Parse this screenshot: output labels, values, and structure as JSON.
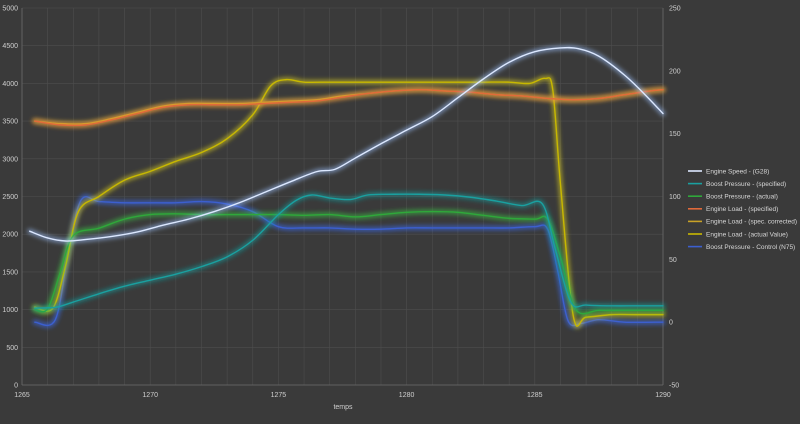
{
  "chart_data": {
    "type": "line",
    "title": "",
    "xlabel": "temps",
    "ylabel": "",
    "xlim": [
      1265,
      1290
    ],
    "ylim_left": [
      0,
      5000
    ],
    "ylim_right": [
      -50,
      250
    ],
    "grid": true,
    "legend_position": "right",
    "x_ticks": [
      1265,
      1270,
      1275,
      1280,
      1285,
      1290
    ],
    "y_left_ticks": [
      0,
      500,
      1000,
      1500,
      2000,
      2500,
      3000,
      3500,
      4000,
      4500,
      5000
    ],
    "y_right_ticks": [
      -50,
      0,
      50,
      100,
      150,
      200,
      250
    ],
    "colors": {
      "background": "#3a3a3a",
      "grid": "#4e4e4e",
      "axis_text": "#cfcfcf"
    },
    "series": [
      {
        "name": "Engine Speed - (G28)",
        "axis": "left",
        "color": "#dce8ff",
        "glow": "#9fc3ff",
        "points": [
          [
            1265.3,
            2040
          ],
          [
            1266,
            1950
          ],
          [
            1266.7,
            1910
          ],
          [
            1267.5,
            1930
          ],
          [
            1268.5,
            1970
          ],
          [
            1269.5,
            2030
          ],
          [
            1270.5,
            2120
          ],
          [
            1271.5,
            2200
          ],
          [
            1272.5,
            2300
          ],
          [
            1273.5,
            2420
          ],
          [
            1274.5,
            2560
          ],
          [
            1275.5,
            2700
          ],
          [
            1276.5,
            2830
          ],
          [
            1277.2,
            2860
          ],
          [
            1278,
            3010
          ],
          [
            1279,
            3200
          ],
          [
            1280,
            3380
          ],
          [
            1281,
            3560
          ],
          [
            1282,
            3810
          ],
          [
            1283,
            4060
          ],
          [
            1284,
            4280
          ],
          [
            1285,
            4420
          ],
          [
            1286,
            4470
          ],
          [
            1286.7,
            4460
          ],
          [
            1287.5,
            4360
          ],
          [
            1288.5,
            4110
          ],
          [
            1289.3,
            3850
          ],
          [
            1290,
            3600
          ]
        ]
      },
      {
        "name": "Boost Pressure - (specified)",
        "axis": "left",
        "color": "#1aa0a0",
        "glow": "#1aa0a0",
        "points": [
          [
            1265.5,
            1020
          ],
          [
            1266.3,
            1030
          ],
          [
            1267,
            1100
          ],
          [
            1268,
            1210
          ],
          [
            1269,
            1310
          ],
          [
            1270,
            1390
          ],
          [
            1271,
            1470
          ],
          [
            1272,
            1570
          ],
          [
            1273,
            1700
          ],
          [
            1274,
            1920
          ],
          [
            1275,
            2260
          ],
          [
            1275.7,
            2450
          ],
          [
            1276.3,
            2520
          ],
          [
            1277,
            2480
          ],
          [
            1277.8,
            2460
          ],
          [
            1278.5,
            2520
          ],
          [
            1279.5,
            2530
          ],
          [
            1280.5,
            2530
          ],
          [
            1281.5,
            2520
          ],
          [
            1282.5,
            2490
          ],
          [
            1283.5,
            2440
          ],
          [
            1284.5,
            2380
          ],
          [
            1285.3,
            2400
          ],
          [
            1285.8,
            1800
          ],
          [
            1286.4,
            1100
          ],
          [
            1287,
            1060
          ],
          [
            1288,
            1050
          ],
          [
            1289,
            1050
          ],
          [
            1290,
            1050
          ]
        ]
      },
      {
        "name": "Boost Pressure - (actual)",
        "axis": "left",
        "color": "#2fa83a",
        "glow": "#3ccf45",
        "points": [
          [
            1265.5,
            1000
          ],
          [
            1266,
            1010
          ],
          [
            1266.5,
            1500
          ],
          [
            1267,
            1980
          ],
          [
            1268,
            2080
          ],
          [
            1269,
            2200
          ],
          [
            1270,
            2260
          ],
          [
            1271,
            2270
          ],
          [
            1272,
            2260
          ],
          [
            1273,
            2260
          ],
          [
            1274,
            2260
          ],
          [
            1275,
            2260
          ],
          [
            1276,
            2250
          ],
          [
            1277,
            2260
          ],
          [
            1278,
            2230
          ],
          [
            1279,
            2260
          ],
          [
            1280,
            2290
          ],
          [
            1281,
            2300
          ],
          [
            1282,
            2290
          ],
          [
            1283,
            2250
          ],
          [
            1284,
            2210
          ],
          [
            1285,
            2200
          ],
          [
            1285.5,
            2200
          ],
          [
            1286,
            1700
          ],
          [
            1286.6,
            1000
          ],
          [
            1287.5,
            990
          ],
          [
            1288.5,
            990
          ],
          [
            1290,
            990
          ]
        ]
      },
      {
        "name": "Engine Load - (specified)",
        "axis": "right",
        "color": "#e06a3a",
        "glow": "#f08a3a",
        "points": [
          [
            1265.5,
            160
          ],
          [
            1266.5,
            157
          ],
          [
            1267.5,
            157
          ],
          [
            1268.5,
            161
          ],
          [
            1269.5,
            166
          ],
          [
            1270.5,
            171
          ],
          [
            1271.5,
            173
          ],
          [
            1272.5,
            173
          ],
          [
            1273.5,
            173
          ],
          [
            1274.5,
            174
          ],
          [
            1275.5,
            175
          ],
          [
            1276.5,
            176
          ],
          [
            1277.5,
            179
          ],
          [
            1278.5,
            182
          ],
          [
            1279.5,
            184
          ],
          [
            1280.5,
            185
          ],
          [
            1281.5,
            184
          ],
          [
            1282.5,
            183
          ],
          [
            1283.5,
            181
          ],
          [
            1284.5,
            180
          ],
          [
            1285.5,
            178
          ],
          [
            1286.5,
            177
          ],
          [
            1287.5,
            178
          ],
          [
            1288.5,
            181
          ],
          [
            1289.5,
            184
          ],
          [
            1290,
            185
          ]
        ]
      },
      {
        "name": "Engine Load - (spec. corrected)",
        "axis": "right",
        "color": "#c9a227",
        "glow": "#e0c040",
        "points": [
          [
            1265.5,
            160
          ],
          [
            1266.5,
            158
          ],
          [
            1267.5,
            158
          ],
          [
            1268.5,
            162
          ],
          [
            1269.5,
            167
          ],
          [
            1270.5,
            172
          ],
          [
            1271.5,
            174
          ],
          [
            1272.5,
            174
          ],
          [
            1273.5,
            174
          ],
          [
            1274.5,
            175
          ],
          [
            1275.5,
            176
          ],
          [
            1276.5,
            177
          ],
          [
            1277.5,
            180
          ],
          [
            1278.5,
            182
          ],
          [
            1279.5,
            184
          ],
          [
            1280.5,
            185
          ],
          [
            1281.5,
            184
          ],
          [
            1282.5,
            183
          ],
          [
            1283.5,
            181
          ],
          [
            1284.5,
            180
          ],
          [
            1285.5,
            178
          ],
          [
            1286.5,
            177
          ],
          [
            1287.5,
            178
          ],
          [
            1288.5,
            181
          ],
          [
            1289.5,
            184
          ],
          [
            1290,
            185
          ]
        ]
      },
      {
        "name": "Engine Load - (actual Value)",
        "axis": "right",
        "color": "#c8b800",
        "glow": "#e8d820",
        "points": [
          [
            1265.5,
            12
          ],
          [
            1266.2,
            11
          ],
          [
            1266.7,
            45
          ],
          [
            1267.2,
            88
          ],
          [
            1268,
            100
          ],
          [
            1269,
            113
          ],
          [
            1270,
            120
          ],
          [
            1271,
            128
          ],
          [
            1272,
            135
          ],
          [
            1273,
            146
          ],
          [
            1274,
            165
          ],
          [
            1274.7,
            188
          ],
          [
            1275.3,
            193
          ],
          [
            1276,
            191
          ],
          [
            1277,
            191
          ],
          [
            1278,
            191
          ],
          [
            1279,
            191
          ],
          [
            1280,
            191
          ],
          [
            1281,
            191
          ],
          [
            1282,
            191
          ],
          [
            1283,
            191
          ],
          [
            1284,
            191
          ],
          [
            1284.8,
            190
          ],
          [
            1285.4,
            194
          ],
          [
            1285.7,
            185
          ],
          [
            1286,
            110
          ],
          [
            1286.5,
            5
          ],
          [
            1287,
            4
          ],
          [
            1288,
            6
          ],
          [
            1289,
            6
          ],
          [
            1290,
            6
          ]
        ]
      },
      {
        "name": "Boost Pressure - Control (N75)",
        "axis": "right",
        "color": "#3c5fcf",
        "glow": "#3c6fff",
        "points": [
          [
            1265.5,
            0
          ],
          [
            1266.3,
            2
          ],
          [
            1266.8,
            55
          ],
          [
            1267.3,
            97
          ],
          [
            1268,
            96
          ],
          [
            1269,
            95
          ],
          [
            1270,
            95
          ],
          [
            1271,
            95
          ],
          [
            1272,
            96
          ],
          [
            1273,
            94
          ],
          [
            1274,
            88
          ],
          [
            1275,
            76
          ],
          [
            1276,
            75
          ],
          [
            1277,
            75
          ],
          [
            1278,
            74
          ],
          [
            1279,
            74
          ],
          [
            1280,
            75
          ],
          [
            1281,
            75
          ],
          [
            1282,
            75
          ],
          [
            1283,
            75
          ],
          [
            1284,
            75
          ],
          [
            1285,
            76
          ],
          [
            1285.5,
            74
          ],
          [
            1285.9,
            40
          ],
          [
            1286.3,
            1
          ],
          [
            1286.8,
            -1
          ],
          [
            1287.5,
            2
          ],
          [
            1288.5,
            0
          ],
          [
            1290,
            0
          ]
        ]
      }
    ]
  }
}
